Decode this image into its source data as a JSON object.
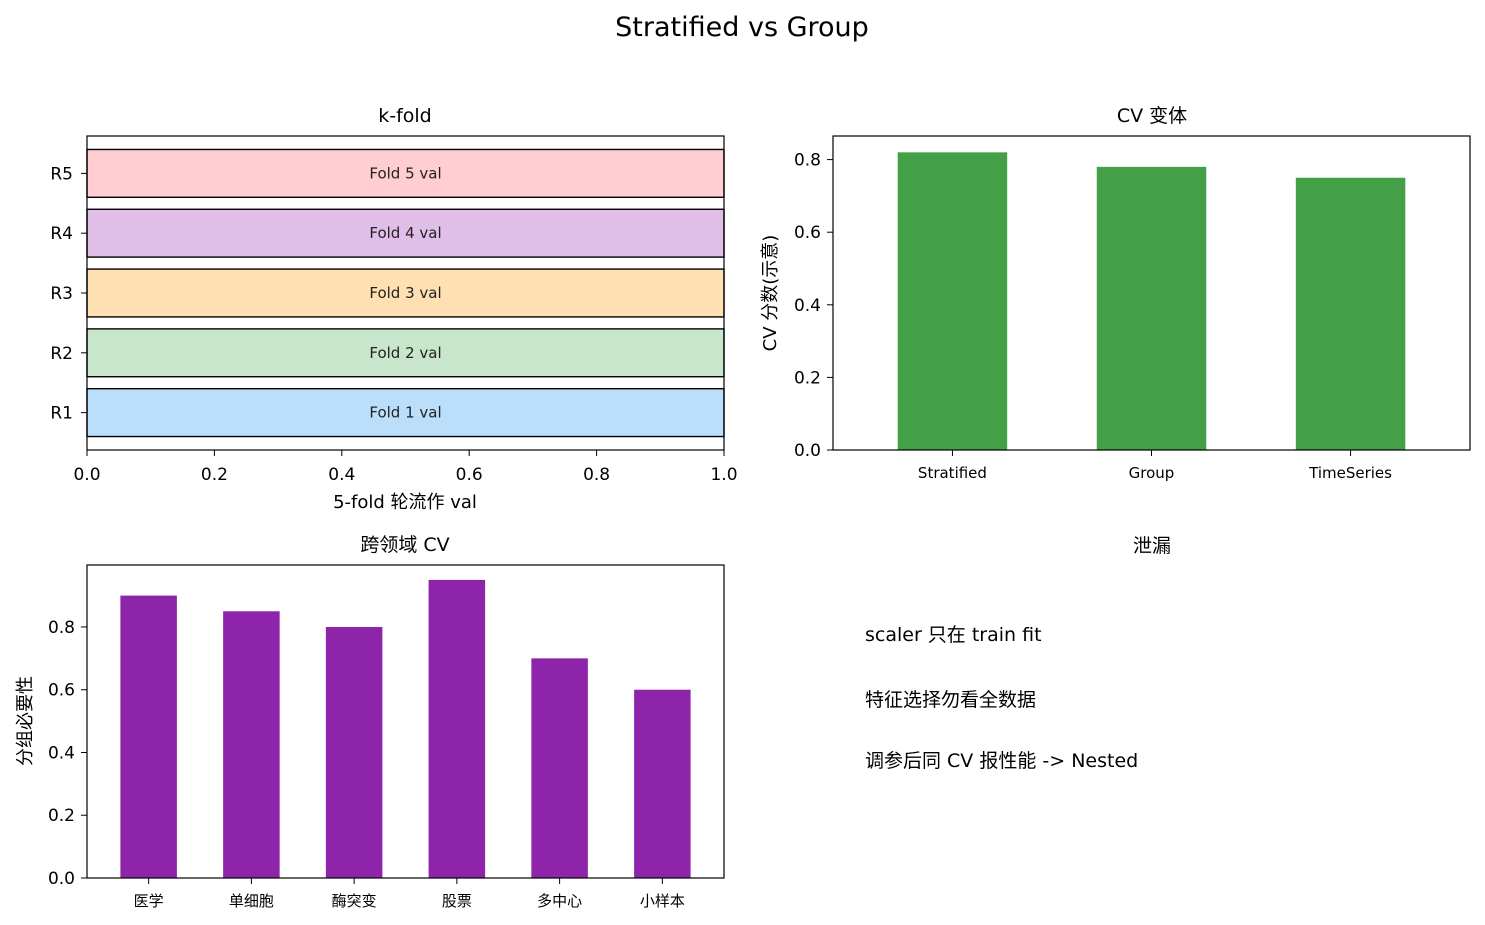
{
  "suptitle": "Stratified vs Group",
  "chart_data": [
    {
      "type": "bar",
      "orientation": "horizontal",
      "title": "k-fold",
      "xlabel": "5-fold 轮流作 val",
      "ylabel": "",
      "xlim": [
        0,
        1
      ],
      "xticks": [
        "0.0",
        "0.2",
        "0.4",
        "0.6",
        "0.8",
        "1.0"
      ],
      "categories": [
        "R1",
        "R2",
        "R3",
        "R4",
        "R5"
      ],
      "values": [
        1,
        1,
        1,
        1,
        1
      ],
      "labels": [
        "Fold 1 val",
        "Fold 2 val",
        "Fold 3 val",
        "Fold 4 val",
        "Fold 5 val"
      ],
      "colors": [
        "#bbdefb",
        "#c8e6c9",
        "#ffe0b2",
        "#e1bee7",
        "#ffcdd2"
      ],
      "grid": false
    },
    {
      "type": "bar",
      "title": "CV 变体",
      "xlabel": "",
      "ylabel": "CV 分数(示意)",
      "ylim": [
        0,
        0.865
      ],
      "yticks": [
        "0.0",
        "0.2",
        "0.4",
        "0.6",
        "0.8"
      ],
      "categories": [
        "Stratified",
        "Group",
        "TimeSeries"
      ],
      "values": [
        0.82,
        0.78,
        0.75
      ],
      "color": "#43a047",
      "grid": false
    },
    {
      "type": "bar",
      "title": "跨领域 CV",
      "xlabel": "",
      "ylabel": "分组必要性",
      "ylim": [
        0,
        0.9975
      ],
      "yticks": [
        "0.0",
        "0.2",
        "0.4",
        "0.6",
        "0.8"
      ],
      "categories": [
        "医学",
        "单细胞",
        "酶突变",
        "股票",
        "多中心",
        "小样本"
      ],
      "values": [
        0.9,
        0.85,
        0.8,
        0.95,
        0.7,
        0.6
      ],
      "color": "#8e24aa",
      "grid": false
    }
  ],
  "leak_panel": {
    "title": "泄漏",
    "notes": [
      "scaler 只在 train fit",
      "特征选择勿看全数据",
      "调参后同 CV 报性能 -> Nested"
    ]
  }
}
